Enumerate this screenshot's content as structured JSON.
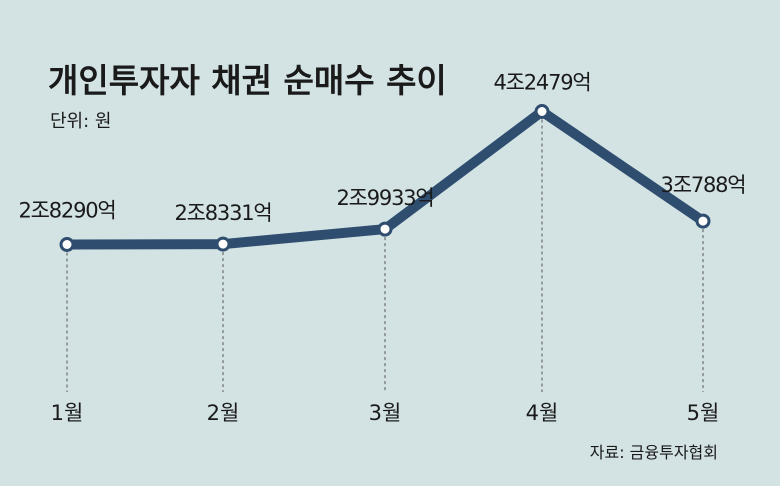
{
  "chart_data": {
    "type": "line",
    "title": "개인투자자 채권 순매수 추이",
    "unit_label": "단위: 원",
    "source": "자료: 금융투자협회",
    "categories": [
      "1월",
      "2월",
      "3월",
      "4월",
      "5월"
    ],
    "values": [
      28290,
      28331,
      29933,
      42479,
      30788
    ],
    "data_labels": [
      "2조8290억",
      "2조8331억",
      "2조9933억",
      "4조2479억",
      "3조788억"
    ],
    "line_color": "#2f4d6f",
    "background_color": "#d3e3e4",
    "grid": false
  }
}
